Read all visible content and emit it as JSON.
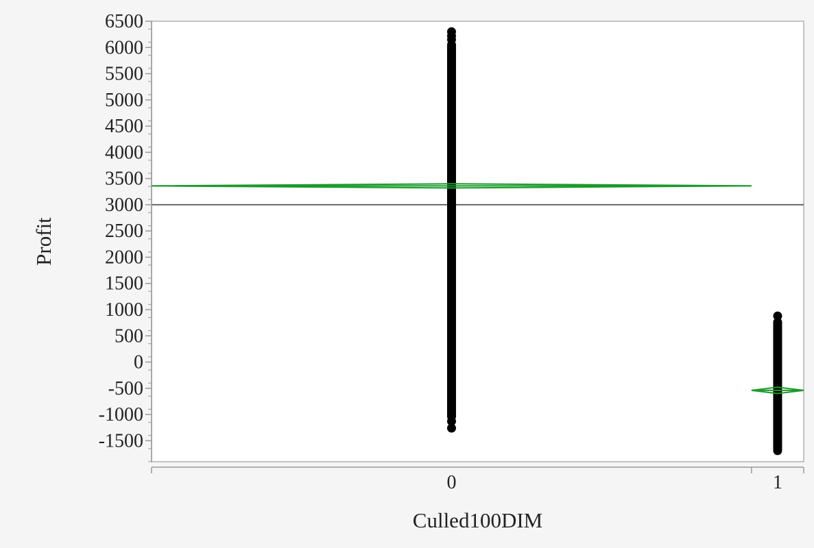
{
  "chart_data": {
    "type": "scatter",
    "title": "",
    "xlabel": "Culled100DIM",
    "ylabel": "Profit",
    "categories": [
      "0",
      "1"
    ],
    "category_weights": [
      0.92,
      0.08
    ],
    "ylim": [
      -1900,
      6500
    ],
    "yticks": [
      -1500,
      -1000,
      -500,
      0,
      500,
      1000,
      1500,
      2000,
      2500,
      3000,
      3500,
      4000,
      4500,
      5000,
      5500,
      6000,
      6500
    ],
    "y_minor_step": 250,
    "grand_mean": 3000,
    "grid": false,
    "legend": "none",
    "groups": [
      {
        "category": "0",
        "mean": 3360,
        "diamond_half_height": 40,
        "range_min": -1040,
        "range_max": 6050,
        "outliers": [
          6300,
          6220,
          6150,
          -1130,
          -1260
        ]
      },
      {
        "category": "1",
        "mean": -540,
        "diamond_half_height": 60,
        "range_min": -1660,
        "range_max": 760,
        "outliers": [
          880,
          -1690
        ]
      }
    ],
    "colors": {
      "points": "#000000",
      "mean_diamond": "#1a9a2a",
      "grand_mean_line": "#666666",
      "axis": "#999999",
      "frame": "#b0b0b0",
      "plot_background": "#ffffff"
    }
  }
}
